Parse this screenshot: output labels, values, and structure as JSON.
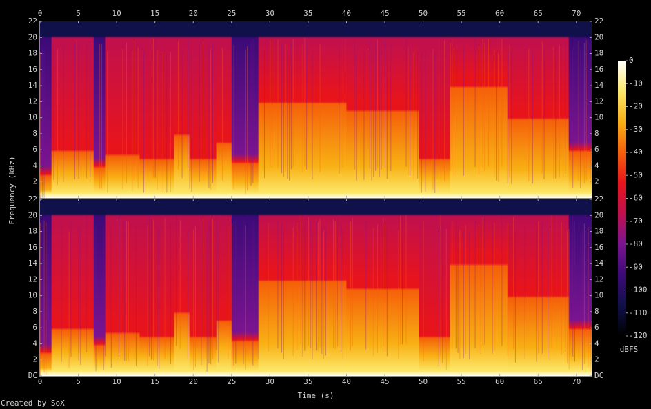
{
  "chart_data": {
    "type": "spectrogram",
    "xlabel": "Time (s)",
    "ylabel": "Frequency (kHz)",
    "credit": "Created by SoX",
    "xlim": [
      0,
      72
    ],
    "xticks": [
      0,
      5,
      10,
      15,
      20,
      25,
      30,
      35,
      40,
      45,
      50,
      55,
      60,
      65,
      70
    ],
    "panels": [
      {
        "ylim": [
          0,
          22
        ],
        "yticks": [
          2,
          4,
          6,
          8,
          10,
          12,
          14,
          16,
          18,
          20,
          22
        ]
      },
      {
        "ylim": [
          0,
          22
        ],
        "yticks": [
          {
            "value": 0,
            "label": "DC"
          },
          2,
          4,
          6,
          8,
          10,
          12,
          14,
          16,
          18,
          20,
          22
        ]
      }
    ],
    "colorbar": {
      "label": "dBFS",
      "lim": [
        -120,
        0
      ],
      "ticks": [
        0,
        -10,
        -20,
        -30,
        -40,
        -50,
        -60,
        -70,
        -80,
        -90,
        -100,
        -110,
        -120
      ],
      "colormap": [
        "#000000",
        "#10104a",
        "#3c0a78",
        "#7a1490",
        "#c0104e",
        "#e8141c",
        "#f5600a",
        "#f8b014",
        "#fce86a",
        "#ffffff"
      ]
    }
  }
}
